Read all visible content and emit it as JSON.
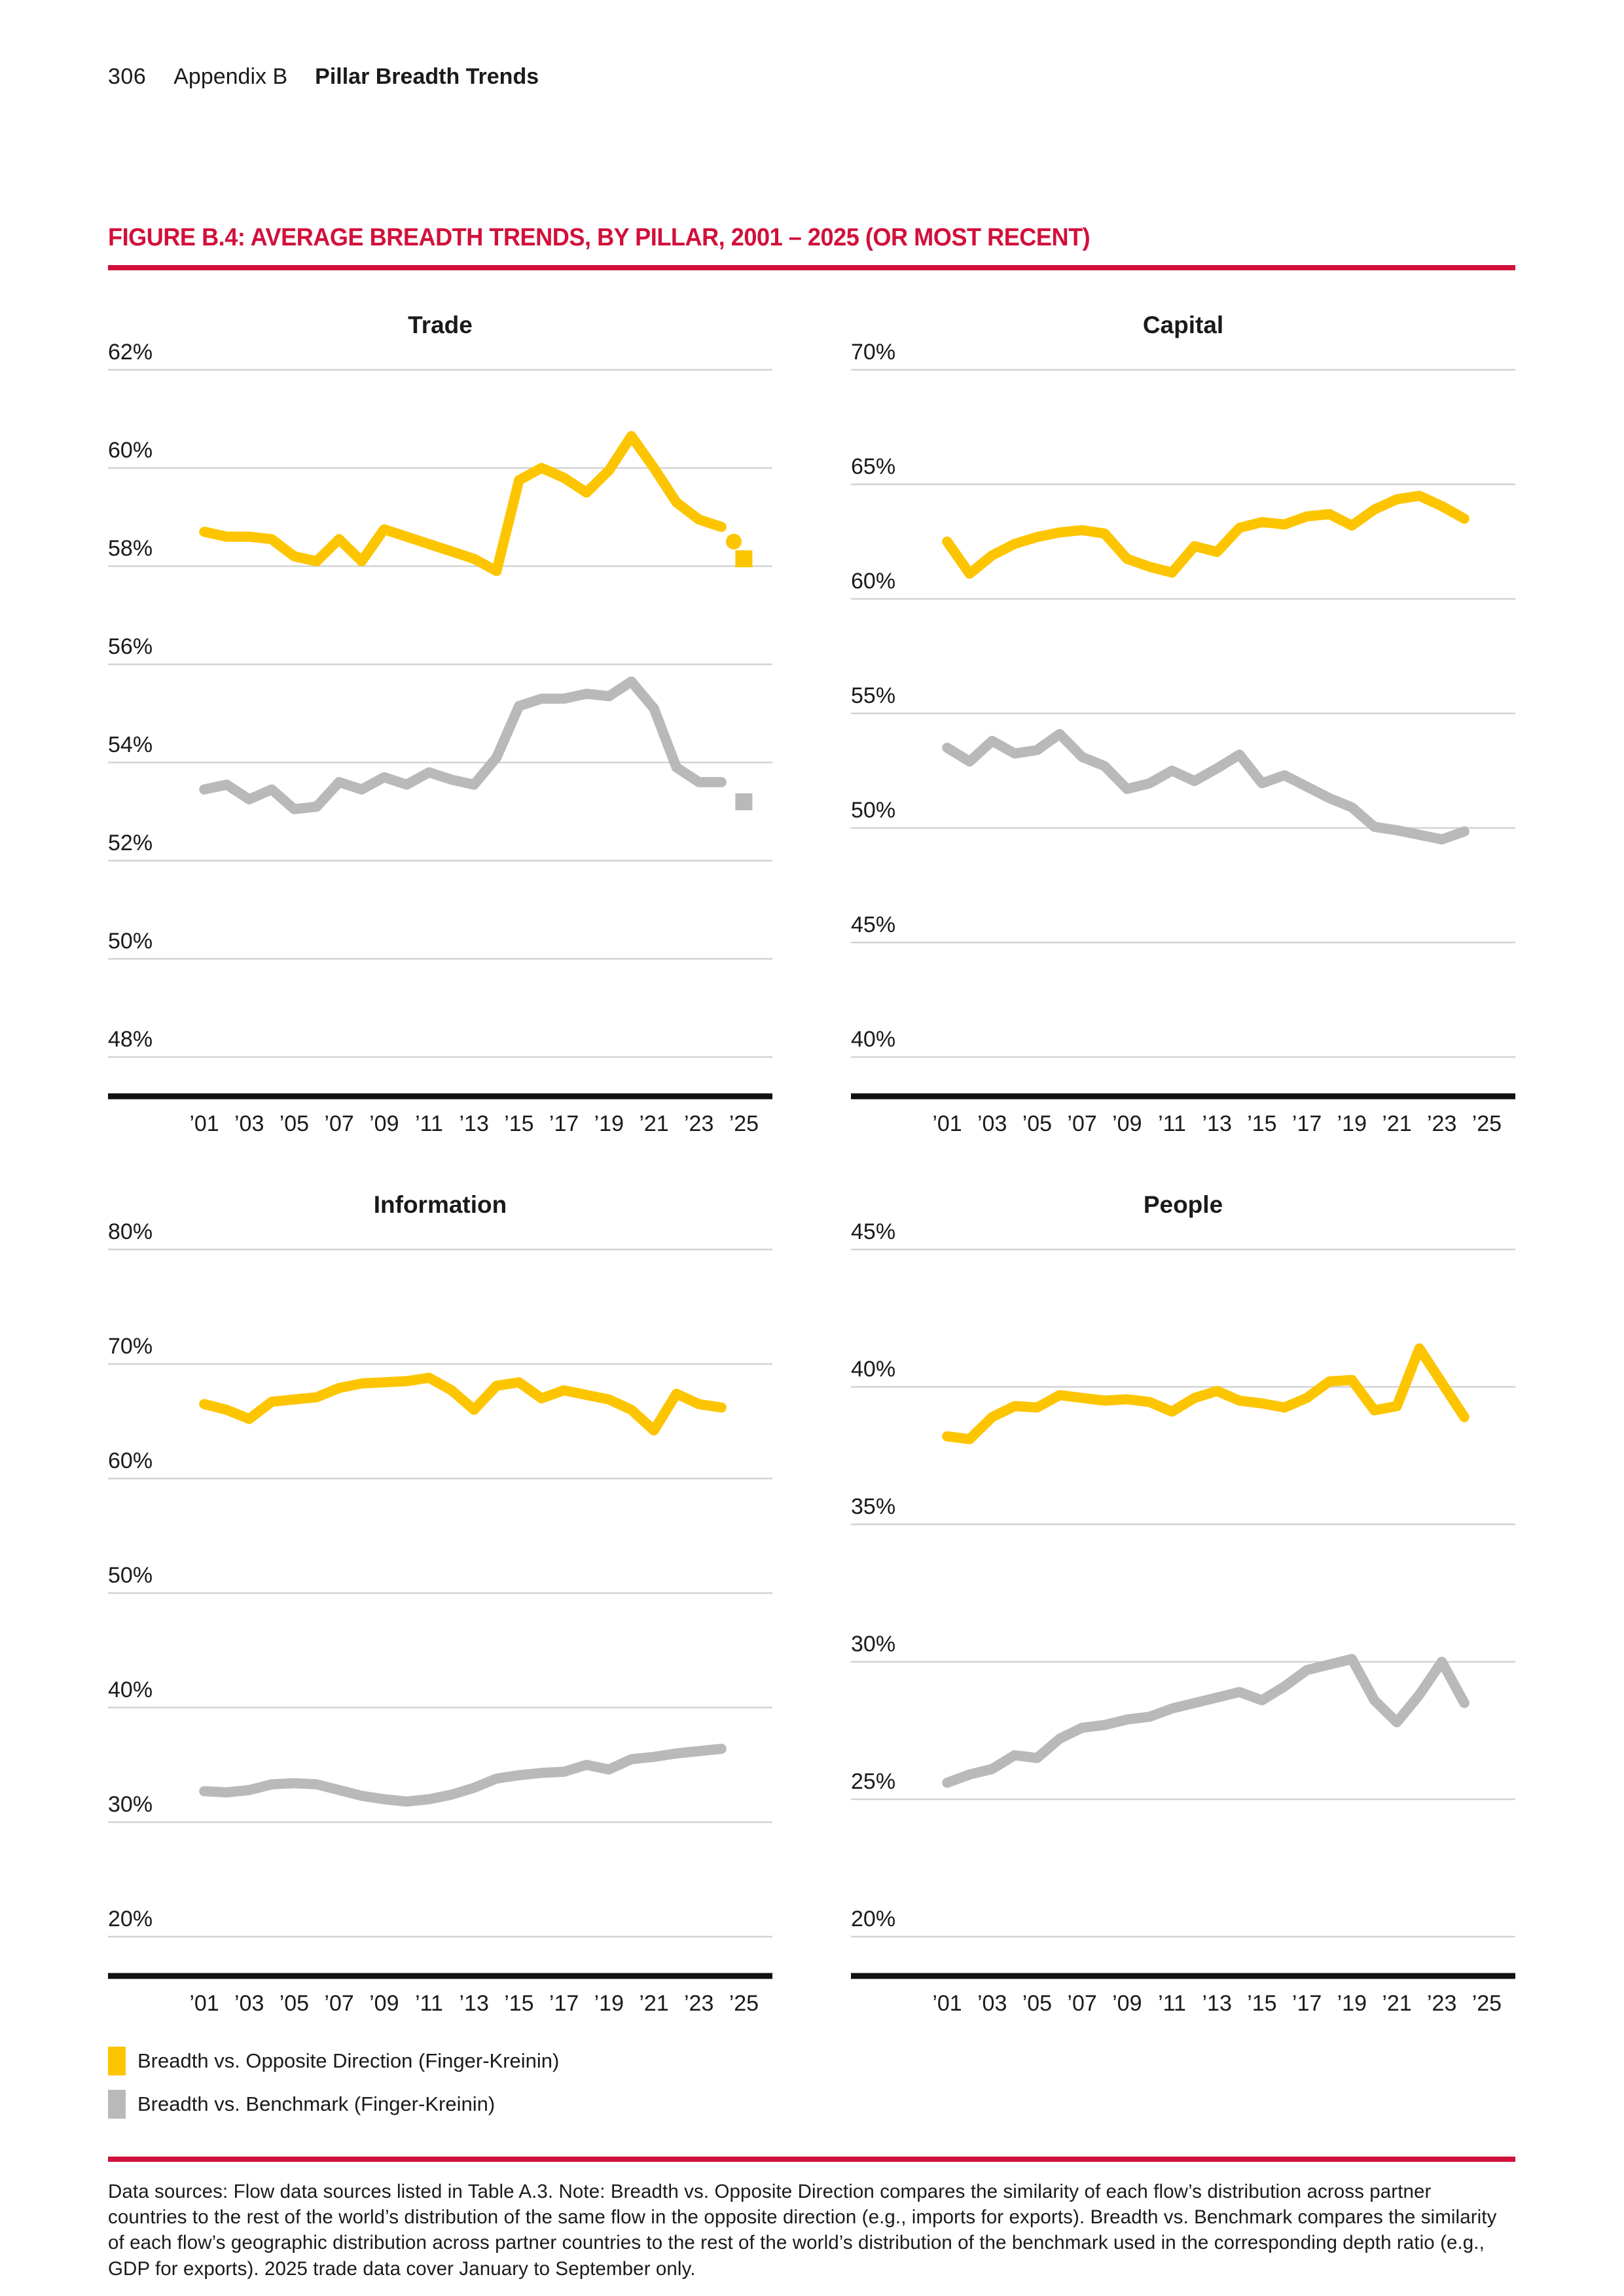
{
  "page": {
    "number": "306",
    "section": "Appendix B",
    "section_title": "Pillar Breadth Trends"
  },
  "figure": {
    "title": "FIGURE B.4: AVERAGE BREADTH TRENDS, BY PILLAR, 2001 – 2025 (OR MOST RECENT)"
  },
  "colors": {
    "yellow": "#fdc500",
    "gray": "#b9b9b9",
    "red": "#d1103b",
    "gridline": "#d2d2d2",
    "axis": "#111111",
    "text": "#1a1a1a"
  },
  "legend": [
    {
      "color": "yellow",
      "label": "Breadth vs. Opposite Direction (Finger-Kreinin)"
    },
    {
      "color": "gray",
      "label": "Breadth vs. Benchmark (Finger-Kreinin)"
    }
  ],
  "footnote": "Data sources: Flow data sources listed in Table A.3. Note: Breadth vs. Opposite Direction compares the similarity of each flow’s distribution across partner countries to the rest of the world’s distribution of the same flow in the opposite direction (e.g., imports for exports). Breadth vs. Benchmark compares the similarity of each flow’s geographic distribution across partner countries to the rest of the world’s distribution of the benchmark used in the corresponding depth ratio (e.g., GDP for exports). 2025 trade data cover January to September only.",
  "chart_data": [
    {
      "type": "line",
      "title": "Trade",
      "ylim": [
        48,
        62
      ],
      "ytick_step": 2,
      "y_tick_labels": [
        "62%",
        "60%",
        "58%",
        "56%",
        "54%",
        "52%",
        "50%",
        "48%"
      ],
      "x_range": [
        2001,
        2025
      ],
      "x_tick_labels": [
        "’01",
        "’03",
        "’05",
        "’07",
        "’09",
        "’11",
        "’13",
        "’15",
        "’17",
        "’19",
        "’21",
        "’23",
        "’25"
      ],
      "start_year": 2001,
      "grid": true,
      "legend_position": "below-figure",
      "series": [
        {
          "name": "Breadth vs. Benchmark (Finger-Kreinin)",
          "color": "gray",
          "values": [
            53.45,
            53.55,
            53.25,
            53.45,
            53.05,
            53.1,
            53.6,
            53.45,
            53.7,
            53.55,
            53.8,
            53.65,
            53.55,
            54.1,
            55.15,
            55.3,
            55.3,
            55.4,
            55.35,
            55.65,
            55.1,
            53.9,
            53.6,
            53.6
          ]
        },
        {
          "name": "Breadth vs. Opposite Direction (Finger-Kreinin)",
          "color": "yellow",
          "values": [
            58.7,
            58.6,
            58.6,
            58.55,
            58.2,
            58.1,
            58.55,
            58.1,
            58.75,
            58.6,
            58.45,
            58.3,
            58.15,
            57.9,
            59.75,
            60.0,
            59.8,
            59.5,
            59.95,
            60.65,
            60.0,
            59.3,
            58.95,
            58.8
          ]
        }
      ],
      "markers": [
        {
          "shape": "circle",
          "color": "yellow",
          "year": 2024.55,
          "value": 58.5
        },
        {
          "shape": "square",
          "color": "yellow",
          "year": 2025,
          "value": 58.15
        },
        {
          "shape": "square",
          "color": "gray",
          "year": 2025,
          "value": 53.2
        }
      ]
    },
    {
      "type": "line",
      "title": "Capital",
      "ylim": [
        40,
        70
      ],
      "ytick_step": 5,
      "y_tick_labels": [
        "70%",
        "65%",
        "60%",
        "55%",
        "50%",
        "45%",
        "40%"
      ],
      "x_range": [
        2001,
        2025
      ],
      "x_tick_labels": [
        "’01",
        "’03",
        "’05",
        "’07",
        "’09",
        "’11",
        "’13",
        "’15",
        "’17",
        "’19",
        "’21",
        "’23",
        "’25"
      ],
      "start_year": 2001,
      "grid": true,
      "series": [
        {
          "name": "Breadth vs. Benchmark (Finger-Kreinin)",
          "color": "gray",
          "values": [
            53.5,
            52.9,
            53.8,
            53.25,
            53.4,
            54.1,
            53.1,
            52.7,
            51.7,
            51.95,
            52.5,
            52.05,
            52.6,
            53.2,
            51.95,
            52.3,
            51.8,
            51.3,
            50.9,
            50.05,
            49.9,
            49.7,
            49.5,
            49.85
          ]
        },
        {
          "name": "Breadth vs. Opposite Direction (Finger-Kreinin)",
          "color": "yellow",
          "values": [
            62.5,
            61.1,
            61.9,
            62.4,
            62.7,
            62.9,
            63.0,
            62.85,
            61.75,
            61.4,
            61.15,
            62.3,
            62.05,
            63.1,
            63.35,
            63.25,
            63.6,
            63.7,
            63.2,
            63.9,
            64.35,
            64.5,
            64.05,
            63.5
          ]
        }
      ],
      "markers": []
    },
    {
      "type": "line",
      "title": "Information",
      "ylim": [
        20,
        80
      ],
      "ytick_step": 10,
      "y_tick_labels": [
        "80%",
        "70%",
        "60%",
        "50%",
        "40%",
        "30%",
        "20%"
      ],
      "x_range": [
        2001,
        2025
      ],
      "x_tick_labels": [
        "’01",
        "’03",
        "’05",
        "’07",
        "’09",
        "’11",
        "’13",
        "’15",
        "’17",
        "’19",
        "’21",
        "’23",
        "’25"
      ],
      "start_year": 2001,
      "grid": true,
      "series": [
        {
          "name": "Breadth vs. Benchmark (Finger-Kreinin)",
          "color": "gray",
          "values": [
            32.7,
            32.6,
            32.8,
            33.3,
            33.4,
            33.3,
            32.8,
            32.3,
            32.0,
            31.8,
            32.0,
            32.4,
            33.0,
            33.8,
            34.1,
            34.3,
            34.4,
            35.0,
            34.6,
            35.5,
            35.7,
            36.0,
            36.2,
            36.4
          ]
        },
        {
          "name": "Breadth vs. Opposite Direction (Finger-Kreinin)",
          "color": "yellow",
          "values": [
            66.5,
            66.0,
            65.2,
            66.7,
            66.9,
            67.1,
            67.9,
            68.3,
            68.4,
            68.5,
            68.8,
            67.7,
            66.0,
            68.1,
            68.4,
            67.0,
            67.7,
            67.3,
            66.9,
            66.0,
            64.2,
            67.4,
            66.5,
            66.2
          ]
        }
      ],
      "markers": []
    },
    {
      "type": "line",
      "title": "People",
      "ylim": [
        20,
        45
      ],
      "ytick_step": 5,
      "y_tick_labels": [
        "45%",
        "40%",
        "35%",
        "30%",
        "25%",
        "20%"
      ],
      "x_range": [
        2001,
        2025
      ],
      "x_tick_labels": [
        "’01",
        "’03",
        "’05",
        "’07",
        "’09",
        "’11",
        "’13",
        "’15",
        "’17",
        "’19",
        "’21",
        "’23",
        "’25"
      ],
      "start_year": 2001,
      "grid": true,
      "series": [
        {
          "name": "Breadth vs. Benchmark (Finger-Kreinin)",
          "color": "gray",
          "values": [
            25.6,
            25.9,
            26.1,
            26.6,
            26.5,
            27.2,
            27.6,
            27.7,
            27.9,
            28.0,
            28.3,
            28.5,
            28.7,
            28.9,
            28.6,
            29.1,
            29.7,
            29.9,
            30.1,
            28.6,
            27.8,
            28.8,
            30.0,
            28.5
          ]
        },
        {
          "name": "Breadth vs. Opposite Direction (Finger-Kreinin)",
          "color": "yellow",
          "values": [
            38.2,
            38.1,
            38.9,
            39.3,
            39.25,
            39.7,
            39.6,
            39.5,
            39.55,
            39.45,
            39.1,
            39.6,
            39.85,
            39.5,
            39.4,
            39.25,
            39.6,
            40.2,
            40.25,
            39.15,
            39.3,
            41.4,
            40.15,
            38.9
          ]
        }
      ],
      "markers": []
    }
  ]
}
